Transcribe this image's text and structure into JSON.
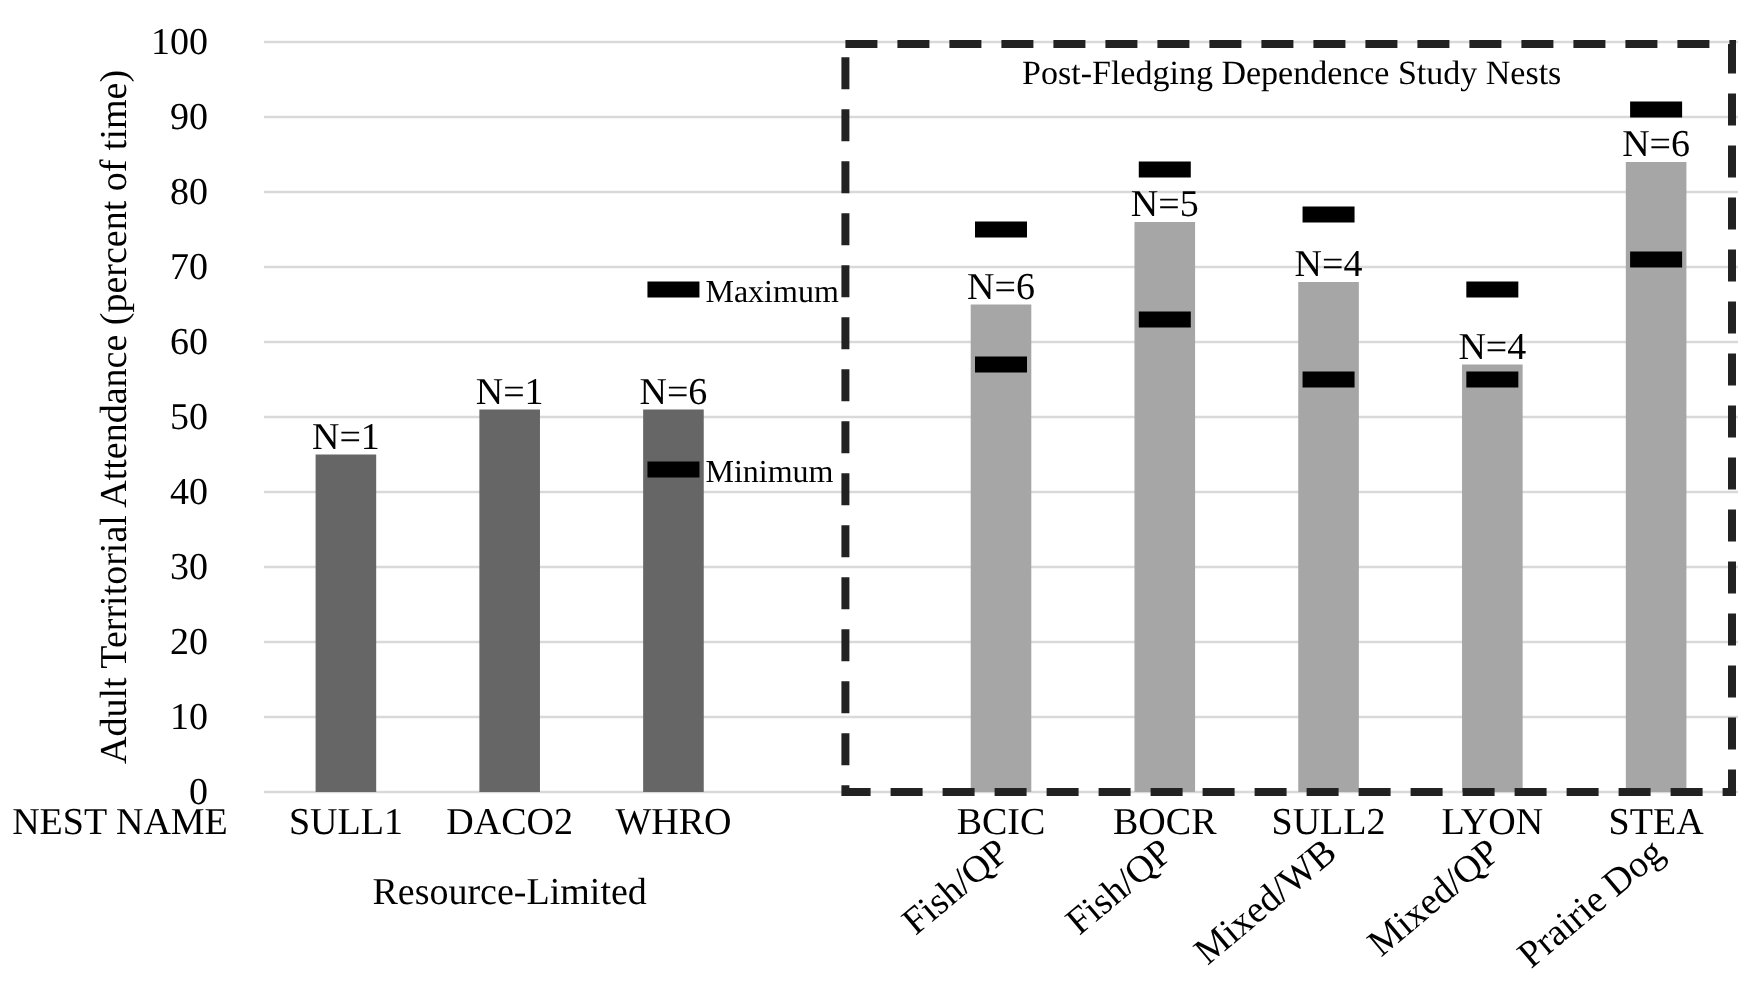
{
  "chart_data": {
    "type": "bar",
    "ylabel": "Adult Territorial  Attendance (percent of time)",
    "categories": [
      "SULL1",
      "DACO2",
      "WHRO",
      null,
      "BCIC",
      "BOCR",
      "SULL2",
      "LYON",
      "STEA"
    ],
    "ylim": [
      0,
      100
    ],
    "yticks": [
      0,
      10,
      20,
      30,
      40,
      50,
      60,
      70,
      80,
      90,
      100
    ],
    "grid": "y",
    "series": [
      {
        "values": [
          45,
          51,
          51,
          null,
          65,
          76,
          68,
          57,
          84
        ],
        "colors": [
          "#666666",
          "#666666",
          "#666666",
          null,
          "#a6a6a6",
          "#a6a6a6",
          "#a6a6a6",
          "#a6a6a6",
          "#a6a6a6"
        ]
      },
      {
        "type": "scatter",
        "name": "Maximum",
        "color": "#000000",
        "values": [
          null,
          null,
          67,
          null,
          75,
          83,
          77,
          67,
          91
        ]
      },
      {
        "type": "scatter",
        "name": "Minimum",
        "color": "#000000",
        "values": [
          null,
          null,
          43,
          null,
          57,
          63,
          55,
          55,
          71
        ]
      }
    ],
    "annotations": [
      "NEST NAME",
      "Resource-Limited",
      "Post-Fledging  Dependence Study Nests",
      "Fish/QP",
      "Fish/QP",
      "Mixed/WB",
      "Mixed/QP",
      "Prairie Dog",
      {
        "text": "N=1",
        "x": "SULL1",
        "y": 45
      },
      {
        "text": "N=1",
        "x": "DACO2",
        "y": 51
      },
      {
        "text": "N=6",
        "x": "WHRO",
        "y": 51
      },
      {
        "text": "N=6",
        "x": "BCIC",
        "y": 65
      },
      {
        "text": "N=5",
        "x": "BOCR",
        "y": 76
      },
      {
        "text": "N=4",
        "x": "SULL2",
        "y": 68
      },
      {
        "text": "N=4",
        "x": "LYON",
        "y": 57
      },
      {
        "text": "N=6",
        "x": "STEA",
        "y": 84
      }
    ]
  }
}
